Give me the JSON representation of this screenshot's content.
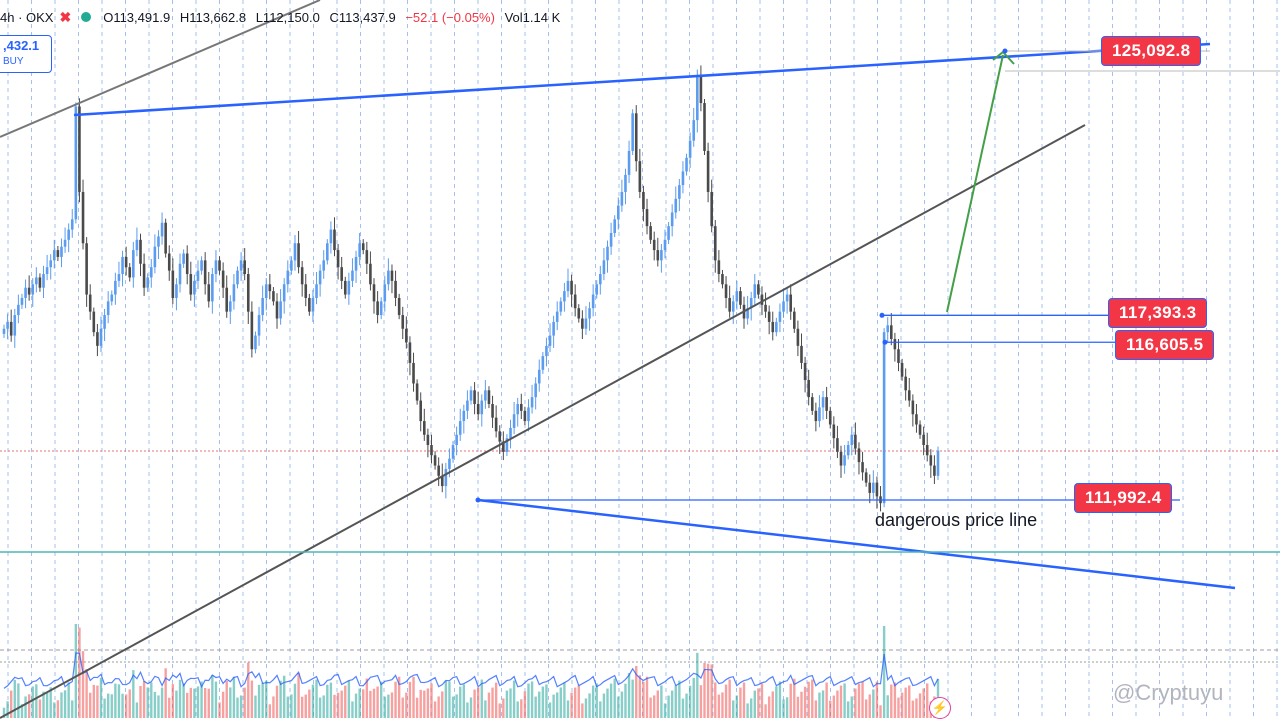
{
  "header": {
    "symbol": "4h · OKX",
    "ohlc": {
      "open": "O113,491.9",
      "high": "H113,662.8",
      "low": "L112,150.0",
      "close": "C113,437.9",
      "change": "−52.1 (−0.05%)",
      "volume": "Vol1.14 K"
    }
  },
  "buy_box": {
    "value": ",432.1",
    "label": "BUY"
  },
  "price_labels": {
    "target": "125,092.8",
    "resistance_high": "117,393.3",
    "resistance_low": "116,605.5",
    "support": "111,992.4"
  },
  "annotation": "dangerous price line",
  "watermark": "@Cryptuyu",
  "colors": {
    "up_candle": "#5b9cf0",
    "down_candle": "#4a4a4a",
    "trend_line": "#2962ff",
    "channel_line": "#555555",
    "arrow": "#43a047",
    "label_bg": "#f23645",
    "volume_up": "#26a69a",
    "volume_down": "#ef5350",
    "volume_ma": "#2962ff",
    "teal_line": "#4fb6b6"
  },
  "chart_data": {
    "type": "candlestick",
    "timeframe": "4h",
    "exchange": "OKX",
    "y_range": [
      110500,
      125800
    ],
    "levels": {
      "target": 125092.8,
      "resistance_high": 117393.3,
      "resistance_low": 116605.5,
      "support": 111992.4
    },
    "candles_close": [
      117000,
      117200,
      116800,
      117400,
      117700,
      117900,
      118200,
      118000,
      118300,
      118500,
      118200,
      118600,
      118800,
      119000,
      119300,
      119100,
      119400,
      119600,
      119900,
      120200,
      123500,
      121000,
      119500,
      118000,
      117500,
      116900,
      116500,
      117000,
      117400,
      117800,
      118000,
      118400,
      118600,
      119100,
      118800,
      118500,
      119300,
      119600,
      118900,
      118200,
      118500,
      118800,
      119400,
      119700,
      120100,
      119200,
      118700,
      117900,
      118300,
      118900,
      119200,
      118600,
      118000,
      118400,
      118700,
      119000,
      118300,
      117800,
      118600,
      119000,
      118700,
      118200,
      117500,
      117800,
      118300,
      118700,
      119000,
      118600,
      117500,
      116400,
      116800,
      117400,
      117900,
      118300,
      118100,
      117800,
      117300,
      117800,
      118300,
      118700,
      119000,
      119500,
      118800,
      118300,
      117900,
      117500,
      117900,
      118300,
      118700,
      119000,
      119500,
      119900,
      119300,
      118800,
      118400,
      118000,
      118400,
      118700,
      119100,
      119500,
      119300,
      118900,
      118300,
      117800,
      117400,
      117800,
      118300,
      118700,
      118400,
      117900,
      117400,
      117000,
      116600,
      116000,
      115400,
      114900,
      114300,
      113900,
      113600,
      113300,
      113000,
      112700,
      112400,
      112900,
      113200,
      113600,
      113900,
      114300,
      114600,
      114900,
      115200,
      114800,
      114500,
      114900,
      115200,
      114800,
      114400,
      114000,
      113700,
      113400,
      113800,
      114100,
      114500,
      114800,
      114600,
      114300,
      114700,
      115000,
      115400,
      115800,
      116200,
      116500,
      116800,
      117200,
      117500,
      117800,
      118100,
      118400,
      118000,
      117600,
      117300,
      117000,
      117300,
      117600,
      118000,
      118300,
      118600,
      119000,
      119400,
      119800,
      120200,
      120600,
      121000,
      121500,
      122200,
      123300,
      121900,
      121000,
      120500,
      120000,
      119600,
      119300,
      119000,
      119300,
      119600,
      120000,
      120400,
      120800,
      121200,
      121600,
      122000,
      122500,
      123100,
      124400,
      123600,
      122200,
      121000,
      120000,
      119000,
      118600,
      118300,
      117900,
      117500,
      117800,
      118100,
      117700,
      117300,
      117600,
      117900,
      118300,
      118000,
      117700,
      117500,
      117200,
      116900,
      117200,
      117500,
      117800,
      118000,
      117500,
      117000,
      116500,
      116000,
      115500,
      115000,
      114600,
      114300,
      114700,
      115000,
      114600,
      114200,
      113800,
      113400,
      113000,
      113300,
      113600,
      113900,
      113500,
      113100,
      112800,
      112500,
      112200,
      112500,
      112100,
      111900,
      116900,
      117100,
      116700,
      116400,
      116000,
      115600,
      115200,
      114900,
      114500,
      114200,
      113900,
      113600,
      113300,
      113000,
      112700,
      113437.9
    ],
    "series": [
      {
        "name": "Vol",
        "value_last": "1.14 K"
      }
    ]
  }
}
